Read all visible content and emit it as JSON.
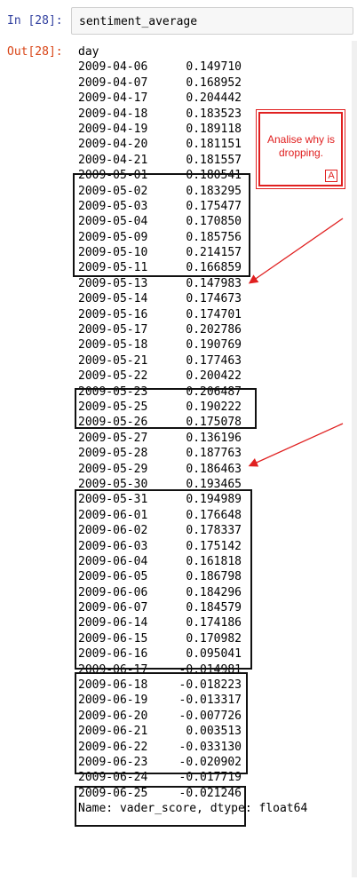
{
  "cell": {
    "in_prompt": "In [28]:",
    "code": "sentiment_average",
    "out_prompt": "Out[28]:"
  },
  "output": {
    "index_name": "day",
    "rows": [
      [
        "2009-04-06",
        "0.149710"
      ],
      [
        "2009-04-07",
        "0.168952"
      ],
      [
        "2009-04-17",
        "0.204442"
      ],
      [
        "2009-04-18",
        "0.183523"
      ],
      [
        "2009-04-19",
        "0.189118"
      ],
      [
        "2009-04-20",
        "0.181151"
      ],
      [
        "2009-04-21",
        "0.181557"
      ],
      [
        "2009-05-01",
        "0.180541"
      ],
      [
        "2009-05-02",
        "0.183295"
      ],
      [
        "2009-05-03",
        "0.175477"
      ],
      [
        "2009-05-04",
        "0.170850"
      ],
      [
        "2009-05-09",
        "0.185756"
      ],
      [
        "2009-05-10",
        "0.214157"
      ],
      [
        "2009-05-11",
        "0.166859"
      ],
      [
        "2009-05-13",
        "0.147983"
      ],
      [
        "2009-05-14",
        "0.174673"
      ],
      [
        "2009-05-16",
        "0.174701"
      ],
      [
        "2009-05-17",
        "0.202786"
      ],
      [
        "2009-05-18",
        "0.190769"
      ],
      [
        "2009-05-21",
        "0.177463"
      ],
      [
        "2009-05-22",
        "0.200422"
      ],
      [
        "2009-05-23",
        "0.206487"
      ],
      [
        "2009-05-25",
        "0.190222"
      ],
      [
        "2009-05-26",
        "0.175078"
      ],
      [
        "2009-05-27",
        "0.136196"
      ],
      [
        "2009-05-28",
        "0.187763"
      ],
      [
        "2009-05-29",
        "0.186463"
      ],
      [
        "2009-05-30",
        "0.193465"
      ],
      [
        "2009-05-31",
        "0.194989"
      ],
      [
        "2009-06-01",
        "0.176648"
      ],
      [
        "2009-06-02",
        "0.178337"
      ],
      [
        "2009-06-03",
        "0.175142"
      ],
      [
        "2009-06-04",
        "0.161818"
      ],
      [
        "2009-06-05",
        "0.186798"
      ],
      [
        "2009-06-06",
        "0.184296"
      ],
      [
        "2009-06-07",
        "0.184579"
      ],
      [
        "2009-06-14",
        "0.174186"
      ],
      [
        "2009-06-15",
        "0.170982"
      ],
      [
        "2009-06-16",
        "0.095041"
      ],
      [
        "2009-06-17",
        "-0.014981"
      ],
      [
        "2009-06-18",
        "-0.018223"
      ],
      [
        "2009-06-19",
        "-0.013317"
      ],
      [
        "2009-06-20",
        "-0.007726"
      ],
      [
        "2009-06-21",
        "0.003513"
      ],
      [
        "2009-06-22",
        "-0.033130"
      ],
      [
        "2009-06-23",
        "-0.020902"
      ],
      [
        "2009-06-24",
        "-0.017719"
      ],
      [
        "2009-06-25",
        "-0.021246"
      ]
    ],
    "footer": "Name: vader_score, dtype: float64"
  },
  "annotation": {
    "note_text": "Analise why is dropping.",
    "note_tag": "A",
    "color": "#e02020"
  }
}
